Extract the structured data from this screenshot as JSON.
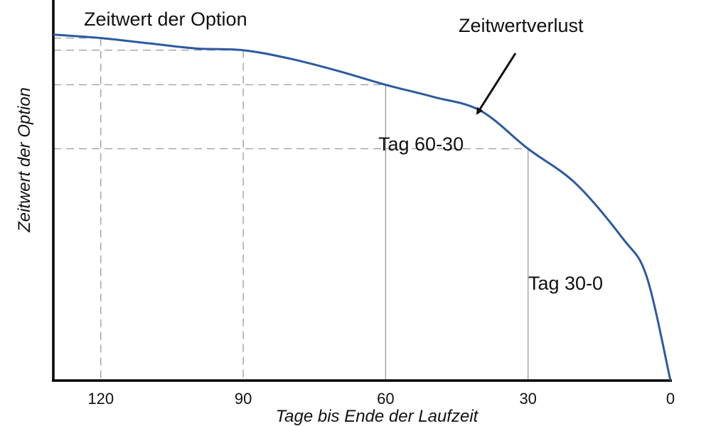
{
  "chart_data": {
    "type": "line",
    "title": "",
    "xlabel": "Tage bis Ende der Laufzeit",
    "ylabel": "Zeitwert der Option",
    "x_reversed": true,
    "xlim": [
      130,
      0
    ],
    "ylim": [
      0,
      1.1
    ],
    "x_ticks": [
      120,
      90,
      60,
      30,
      0
    ],
    "grid": false,
    "curve_color": "#2c5aa0",
    "axis_color": "#000000",
    "series": [
      {
        "x": [
          130,
          120,
          110,
          100,
          90,
          80,
          70,
          60,
          50,
          40,
          30,
          20,
          10,
          5,
          0
        ],
        "y": [
          1.0,
          0.99,
          0.975,
          0.96,
          0.955,
          0.93,
          0.895,
          0.855,
          0.82,
          0.78,
          0.67,
          0.57,
          0.41,
          0.3,
          0.0
        ]
      }
    ],
    "reference_points": [
      {
        "x": 120,
        "y": 0.99,
        "style": "dashed"
      },
      {
        "x": 90,
        "y": 0.955,
        "style": "dashed"
      },
      {
        "x": 60,
        "y": 0.855,
        "style": "mixed"
      },
      {
        "x": 30,
        "y": 0.67,
        "style": "mixed"
      }
    ],
    "annotations": [
      {
        "id": "top",
        "text": "Zeitwert der Option"
      },
      {
        "id": "decay",
        "text": "Zeitwertverlust"
      },
      {
        "id": "d60_30",
        "text": "Tag 60-30"
      },
      {
        "id": "d30_0",
        "text": "Tag 30-0"
      }
    ]
  }
}
